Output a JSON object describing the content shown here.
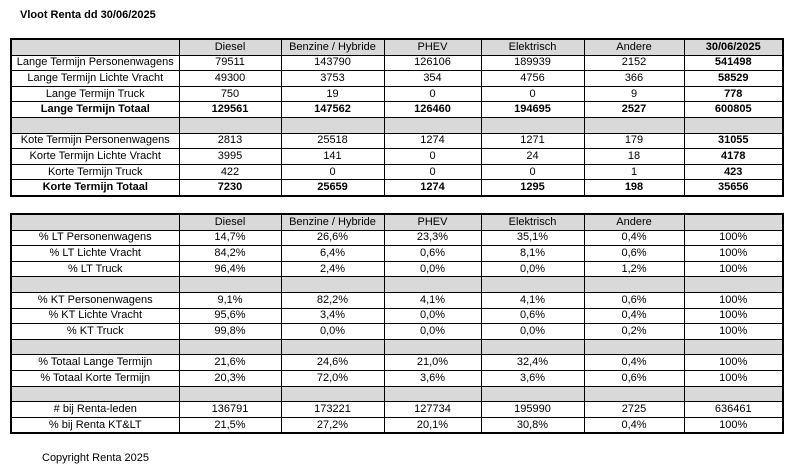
{
  "title": "Vloot Renta dd 30/06/2025",
  "table1": {
    "header": [
      "Diesel",
      "Benzine / Hybride",
      "PHEV",
      "Elektrisch",
      "Andere",
      "30/06/2025"
    ],
    "sections": [
      [
        [
          "Lange Termijn Personenwagens",
          "79511",
          "143790",
          "126106",
          "189939",
          "2152",
          "541498"
        ],
        [
          "Lange Termijn Lichte Vracht",
          "49300",
          "3753",
          "354",
          "4756",
          "366",
          "58529"
        ],
        [
          "Lange Termijn Truck",
          "750",
          "19",
          "0",
          "0",
          "9",
          "778"
        ],
        [
          "Lange Termijn Totaal",
          "129561",
          "147562",
          "126460",
          "194695",
          "2527",
          "600805"
        ]
      ],
      [
        [
          "Kote Termijn Personenwagens",
          "2813",
          "25518",
          "1274",
          "1271",
          "179",
          "31055"
        ],
        [
          "Korte Termijn Lichte Vracht",
          "3995",
          "141",
          "0",
          "24",
          "18",
          "4178"
        ],
        [
          "Korte Termijn Truck",
          "422",
          "0",
          "0",
          "0",
          "1",
          "423"
        ],
        [
          "Korte Termijn Totaal",
          "7230",
          "25659",
          "1274",
          "1295",
          "198",
          "35656"
        ]
      ]
    ]
  },
  "table2": {
    "header": [
      "Diesel",
      "Benzine / Hybride",
      "PHEV",
      "Elektrisch",
      "Andere"
    ],
    "sections": [
      [
        [
          "% LT Personenwagens",
          "14,7%",
          "26,6%",
          "23,3%",
          "35,1%",
          "0,4%",
          "100%"
        ],
        [
          "% LT Lichte Vracht",
          "84,2%",
          "6,4%",
          "0,6%",
          "8,1%",
          "0,6%",
          "100%"
        ],
        [
          "% LT Truck",
          "96,4%",
          "2,4%",
          "0,0%",
          "0,0%",
          "1,2%",
          "100%"
        ]
      ],
      [
        [
          "% KT Personenwagens",
          "9,1%",
          "82,2%",
          "4,1%",
          "4,1%",
          "0,6%",
          "100%"
        ],
        [
          "% KT Lichte Vracht",
          "95,6%",
          "3,4%",
          "0,0%",
          "0,6%",
          "0,4%",
          "100%"
        ],
        [
          "% KT Truck",
          "99,8%",
          "0,0%",
          "0,0%",
          "0,0%",
          "0,2%",
          "100%"
        ]
      ],
      [
        [
          "% Totaal Lange Termijn",
          "21,6%",
          "24,6%",
          "21,0%",
          "32,4%",
          "0,4%",
          "100%"
        ],
        [
          "% Totaal Korte Termijn",
          "20,3%",
          "72,0%",
          "3,6%",
          "3,6%",
          "0,6%",
          "100%"
        ]
      ],
      [
        [
          "# bij Renta-leden",
          "136791",
          "173221",
          "127734",
          "195990",
          "2725",
          "636461"
        ],
        [
          "% bij Renta KT&LT",
          "21,5%",
          "27,2%",
          "20,1%",
          "30,8%",
          "0,4%",
          "100%"
        ]
      ]
    ]
  },
  "footer": "Copyright Renta 2025"
}
